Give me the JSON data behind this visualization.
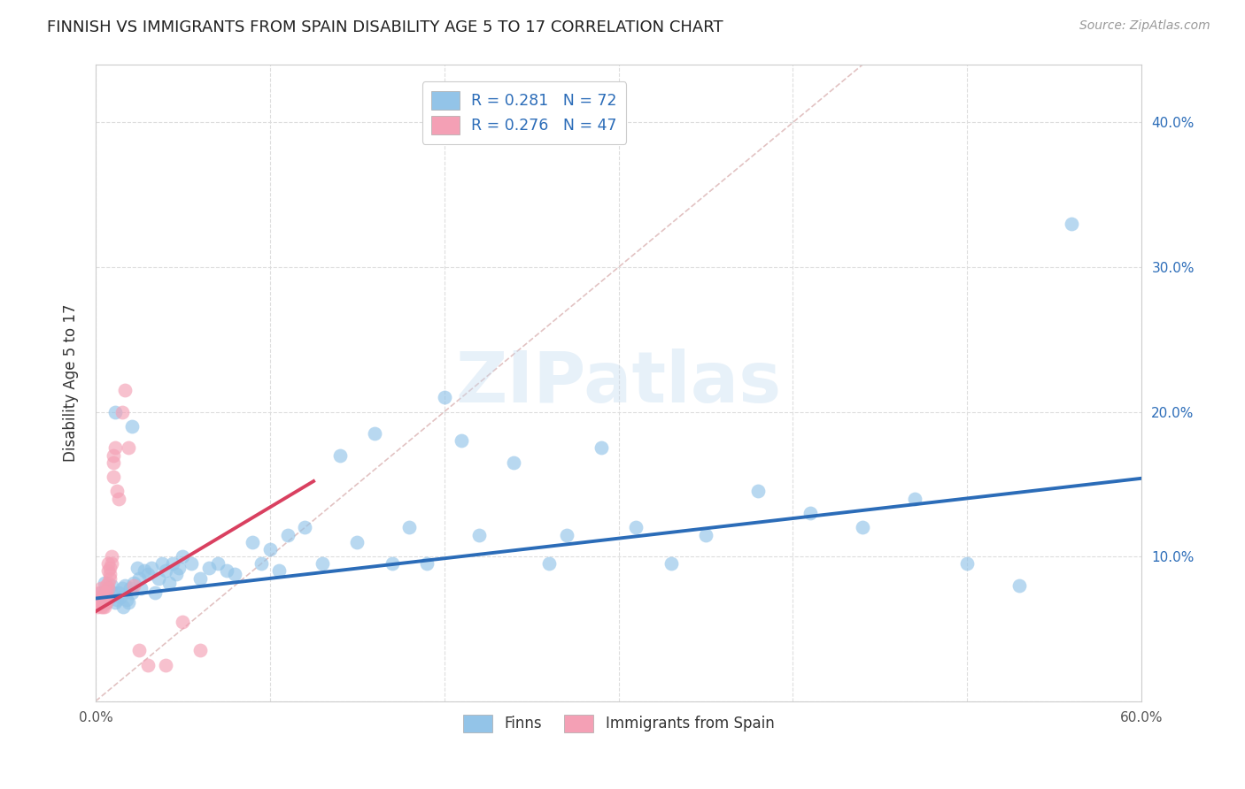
{
  "title": "FINNISH VS IMMIGRANTS FROM SPAIN DISABILITY AGE 5 TO 17 CORRELATION CHART",
  "source": "Source: ZipAtlas.com",
  "ylabel": "Disability Age 5 to 17",
  "xlim": [
    0.0,
    0.6
  ],
  "ylim": [
    0.0,
    0.44
  ],
  "xticks": [
    0.0,
    0.1,
    0.2,
    0.3,
    0.4,
    0.5,
    0.6
  ],
  "xticklabels": [
    "0.0%",
    "",
    "",
    "",
    "",
    "",
    "60.0%"
  ],
  "yticks": [
    0.0,
    0.1,
    0.2,
    0.3,
    0.4
  ],
  "yticklabels_right": [
    "",
    "10.0%",
    "20.0%",
    "30.0%",
    "40.0%"
  ],
  "legend_r1": "R = 0.281",
  "legend_n1": "N = 72",
  "legend_r2": "R = 0.276",
  "legend_n2": "N = 47",
  "color_finns": "#93C4E8",
  "color_spain": "#F4A0B5",
  "trend_color_finns": "#2B6CB8",
  "trend_color_spain": "#D94060",
  "diagonal_color": "#DDB8B8",
  "watermark": "ZIPatlas",
  "finns_x": [
    0.003,
    0.005,
    0.006,
    0.007,
    0.008,
    0.009,
    0.01,
    0.011,
    0.012,
    0.013,
    0.014,
    0.015,
    0.016,
    0.017,
    0.018,
    0.019,
    0.02,
    0.021,
    0.022,
    0.024,
    0.025,
    0.026,
    0.028,
    0.03,
    0.032,
    0.034,
    0.036,
    0.038,
    0.04,
    0.042,
    0.044,
    0.046,
    0.048,
    0.05,
    0.055,
    0.06,
    0.065,
    0.07,
    0.075,
    0.08,
    0.09,
    0.095,
    0.1,
    0.105,
    0.11,
    0.12,
    0.13,
    0.14,
    0.15,
    0.16,
    0.17,
    0.18,
    0.19,
    0.2,
    0.21,
    0.22,
    0.24,
    0.26,
    0.27,
    0.29,
    0.31,
    0.33,
    0.35,
    0.38,
    0.41,
    0.44,
    0.47,
    0.5,
    0.53,
    0.56,
    0.011,
    0.021
  ],
  "finns_y": [
    0.075,
    0.082,
    0.068,
    0.078,
    0.072,
    0.08,
    0.075,
    0.068,
    0.07,
    0.075,
    0.072,
    0.078,
    0.065,
    0.08,
    0.07,
    0.068,
    0.078,
    0.075,
    0.082,
    0.092,
    0.085,
    0.078,
    0.09,
    0.088,
    0.092,
    0.075,
    0.085,
    0.095,
    0.09,
    0.082,
    0.095,
    0.088,
    0.092,
    0.1,
    0.095,
    0.085,
    0.092,
    0.095,
    0.09,
    0.088,
    0.11,
    0.095,
    0.105,
    0.09,
    0.115,
    0.12,
    0.095,
    0.17,
    0.11,
    0.185,
    0.095,
    0.12,
    0.095,
    0.21,
    0.18,
    0.115,
    0.165,
    0.095,
    0.115,
    0.175,
    0.12,
    0.095,
    0.115,
    0.145,
    0.13,
    0.12,
    0.14,
    0.095,
    0.08,
    0.33,
    0.2,
    0.19
  ],
  "spain_x": [
    0.001,
    0.001,
    0.001,
    0.002,
    0.002,
    0.002,
    0.003,
    0.003,
    0.003,
    0.003,
    0.004,
    0.004,
    0.004,
    0.004,
    0.005,
    0.005,
    0.005,
    0.005,
    0.005,
    0.006,
    0.006,
    0.006,
    0.006,
    0.007,
    0.007,
    0.007,
    0.007,
    0.008,
    0.008,
    0.008,
    0.009,
    0.009,
    0.01,
    0.01,
    0.01,
    0.011,
    0.012,
    0.013,
    0.015,
    0.017,
    0.019,
    0.022,
    0.025,
    0.03,
    0.04,
    0.05,
    0.06
  ],
  "spain_y": [
    0.068,
    0.072,
    0.065,
    0.068,
    0.075,
    0.07,
    0.068,
    0.072,
    0.065,
    0.078,
    0.068,
    0.072,
    0.065,
    0.07,
    0.075,
    0.068,
    0.072,
    0.065,
    0.07,
    0.075,
    0.08,
    0.068,
    0.072,
    0.078,
    0.082,
    0.09,
    0.095,
    0.085,
    0.088,
    0.092,
    0.095,
    0.1,
    0.155,
    0.165,
    0.17,
    0.175,
    0.145,
    0.14,
    0.2,
    0.215,
    0.175,
    0.08,
    0.035,
    0.025,
    0.025,
    0.055,
    0.035
  ],
  "trend_finns_x0": 0.0,
  "trend_finns_x1": 0.6,
  "trend_finns_y0": 0.071,
  "trend_finns_y1": 0.154,
  "trend_spain_x0": 0.0,
  "trend_spain_x1": 0.125,
  "trend_spain_y0": 0.062,
  "trend_spain_y1": 0.152
}
